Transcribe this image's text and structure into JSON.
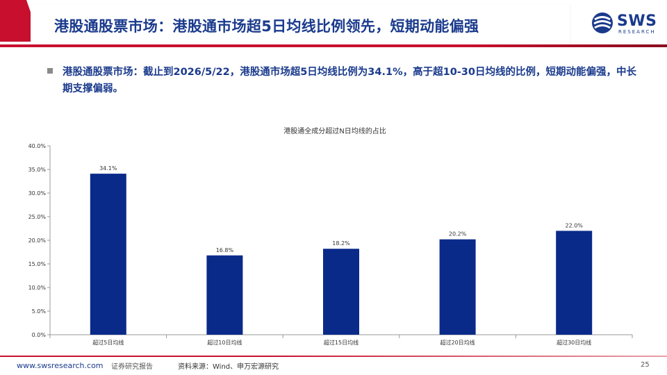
{
  "header": {
    "title": "港股通股票市场：港股通市场超5日均线比例领先，短期动能偏强",
    "logo_text": "SWS",
    "logo_sub": "RESEARCH"
  },
  "bullet": {
    "text": "港股通股票市场：截止到2026/5/22，港股通市场超5日均线比例为34.1%，高于超10-30日均线的比例，短期动能偏强，中长期支撑偏弱。"
  },
  "chart_data": {
    "type": "bar",
    "title": "港股通全成分超过N日均线的占比",
    "categories": [
      "超过5日均线",
      "超过10日均线",
      "超过15日均线",
      "超过20日均线",
      "超过30日均线"
    ],
    "values": [
      34.1,
      16.8,
      18.2,
      20.2,
      22.0
    ],
    "value_labels": [
      "34.1%",
      "16.8%",
      "18.2%",
      "20.2%",
      "22.0%"
    ],
    "ylim": [
      0,
      40
    ],
    "yticks": [
      0,
      5,
      10,
      15,
      20,
      25,
      30,
      35,
      40
    ],
    "ytick_labels": [
      "0.0%",
      "5.0%",
      "10.0%",
      "15.0%",
      "20.0%",
      "25.0%",
      "30.0%",
      "35.0%",
      "40.0%"
    ],
    "xlabel": "",
    "ylabel": "",
    "grid": false,
    "legend": "none",
    "bar_color": "#0a2a8a"
  },
  "footer": {
    "url": "www.swsresearch.com",
    "label": "证券研究报告",
    "source": "资料来源：Wind、申万宏源研究",
    "page": "25"
  },
  "colors": {
    "accent_red": "#c8102e",
    "title_blue": "#1a3a8c"
  }
}
